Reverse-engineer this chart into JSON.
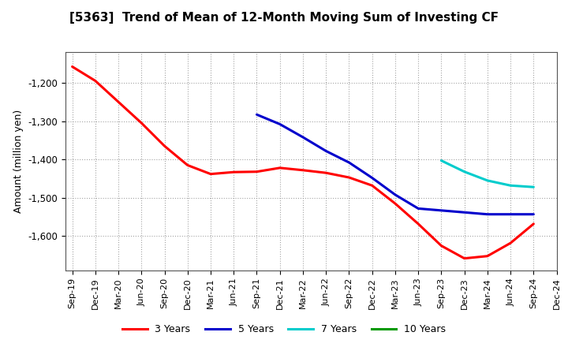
{
  "title": "[5363]  Trend of Mean of 12-Month Moving Sum of Investing CF",
  "ylabel": "Amount (million yen)",
  "background_color": "#ffffff",
  "plot_bg_color": "#ffffff",
  "grid_color": "#999999",
  "ylim": [
    -1690,
    -1120
  ],
  "yticks": [
    -1600,
    -1500,
    -1400,
    -1300,
    -1200
  ],
  "x_labels": [
    "Sep-19",
    "Dec-19",
    "Mar-20",
    "Jun-20",
    "Sep-20",
    "Dec-20",
    "Mar-21",
    "Jun-21",
    "Sep-21",
    "Dec-21",
    "Mar-22",
    "Jun-22",
    "Sep-22",
    "Dec-22",
    "Mar-23",
    "Jun-23",
    "Sep-23",
    "Dec-23",
    "Mar-24",
    "Jun-24",
    "Sep-24",
    "Dec-24"
  ],
  "series_3y": {
    "label": "3 Years",
    "color": "#ff0000",
    "x": [
      0,
      1,
      2,
      3,
      4,
      5,
      6,
      7,
      8,
      9,
      10,
      11,
      12,
      13,
      14,
      15,
      16,
      17,
      18,
      19,
      20
    ],
    "y": [
      -1158,
      -1195,
      -1250,
      -1305,
      -1365,
      -1415,
      -1438,
      -1433,
      -1432,
      -1422,
      -1428,
      -1435,
      -1447,
      -1468,
      -1515,
      -1568,
      -1625,
      -1658,
      -1652,
      -1618,
      -1568
    ]
  },
  "series_5y": {
    "label": "5 Years",
    "color": "#0000cc",
    "x": [
      8,
      9,
      10,
      11,
      12,
      13,
      14,
      15,
      16,
      17,
      18,
      19,
      20
    ],
    "y": [
      -1283,
      -1308,
      -1342,
      -1378,
      -1408,
      -1448,
      -1492,
      -1528,
      -1533,
      -1538,
      -1543,
      -1543,
      -1543
    ]
  },
  "series_7y": {
    "label": "7 Years",
    "color": "#00cccc",
    "x": [
      16,
      17,
      18,
      19,
      20
    ],
    "y": [
      -1403,
      -1432,
      -1455,
      -1468,
      -1472
    ]
  },
  "series_10y": {
    "label": "10 Years",
    "color": "#009900",
    "x": [],
    "y": []
  }
}
